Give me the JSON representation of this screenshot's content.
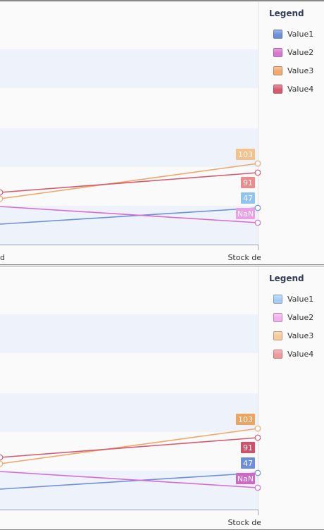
{
  "chart_data": [
    {
      "type": "line",
      "x": [
        "",
        "Stock delivered"
      ],
      "x_labels_visible": [
        "d",
        "Stock delivered"
      ],
      "legend_title": "Legend",
      "legend_position": "right",
      "grid": "horizontal bands",
      "series": [
        {
          "name": "Value1",
          "values": [
            null,
            47
          ],
          "color": "#6c8fe0",
          "swatch": "#6d8fdb",
          "label_color": "#8fc3f5",
          "label": "47"
        },
        {
          "name": "Value2",
          "values": [
            null,
            null
          ],
          "color": "#d86bd2",
          "swatch": "#d877cf",
          "label_color": "#ee9ee8",
          "label": "NaN"
        },
        {
          "name": "Value3",
          "values": [
            null,
            103
          ],
          "color": "#f0a76a",
          "swatch": "#f2a96e",
          "label_color": "#f6c08a",
          "label": "103"
        },
        {
          "name": "Value4",
          "values": [
            null,
            91
          ],
          "color": "#d55a6f",
          "swatch": "#d95a6e",
          "label_color": "#ee8a8a",
          "label": "91"
        }
      ]
    },
    {
      "type": "line",
      "x": [
        "",
        "Stock delivered"
      ],
      "x_labels_visible": [
        "",
        "Stock delivered"
      ],
      "legend_title": "Legend",
      "legend_position": "right",
      "grid": "horizontal bands",
      "series": [
        {
          "name": "Value1",
          "values": [
            null,
            47
          ],
          "color": "#6c8fe0",
          "swatch": "#a5cdf7",
          "label_color": "#6d8fdb",
          "label": "47"
        },
        {
          "name": "Value2",
          "values": [
            null,
            null
          ],
          "color": "#d86bd2",
          "swatch": "#f3b1ec",
          "label_color": "#d066c8",
          "label": "NaN"
        },
        {
          "name": "Value3",
          "values": [
            null,
            103
          ],
          "color": "#f0a76a",
          "swatch": "#f8c99a",
          "label_color": "#eea35f",
          "label": "103"
        },
        {
          "name": "Value4",
          "values": [
            null,
            91
          ],
          "color": "#d55a6f",
          "swatch": "#f0999b",
          "label_color": "#d45068",
          "label": "91"
        }
      ]
    }
  ]
}
